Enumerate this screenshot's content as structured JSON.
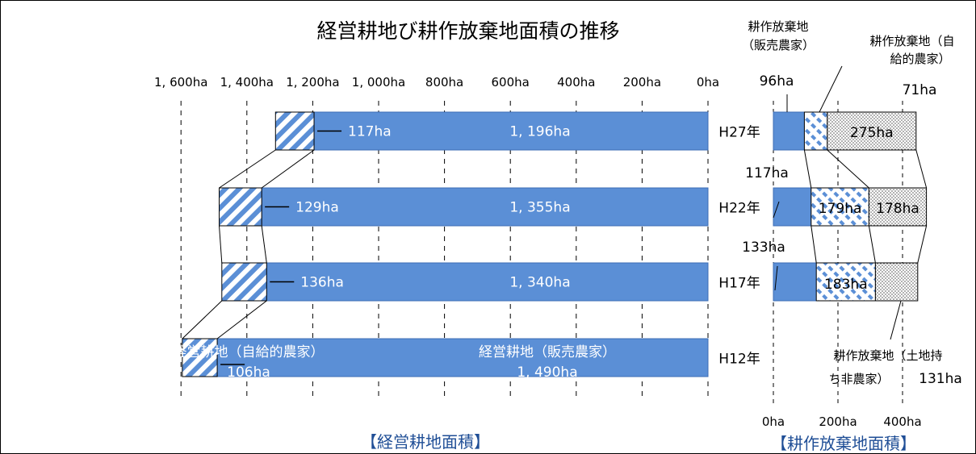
{
  "chart_data": [
    {
      "type": "bar",
      "title": "経営耕地び耕作放棄地面積の推移",
      "caption": "【経営耕地面積】",
      "x_ticks": [
        "1, 600ha",
        "1, 400ha",
        "1, 200ha",
        "1, 000ha",
        "800ha",
        "600ha",
        "400ha",
        "200ha",
        "0ha"
      ],
      "x_range": [
        0,
        1800
      ],
      "categories": [
        "H27年",
        "H22年",
        "H17年",
        "H12年"
      ],
      "series": [
        {
          "name": "経営耕地（販売農家）",
          "values": [
            1196,
            1355,
            1340,
            1490
          ],
          "labels": [
            "1, 196ha",
            "1, 355ha",
            "1, 340ha",
            "1, 490ha"
          ]
        },
        {
          "name": "経営耕地（自給的農家）",
          "values": [
            117,
            129,
            136,
            106
          ],
          "labels": [
            "117ha",
            "129ha",
            "136ha",
            "106ha"
          ]
        }
      ],
      "series_labels": {
        "sales_name": "経営耕地（販売農家）",
        "self_name": "経営耕地（自給的農家）"
      },
      "colors": {
        "sales": "#5b8fd6",
        "self_pattern": "#5b8fd6"
      }
    },
    {
      "type": "bar",
      "caption": "【耕作放棄地面積】",
      "x_ticks": [
        "0ha",
        "200ha",
        "400ha"
      ],
      "x_range": [
        0,
        450
      ],
      "categories": [
        "H27年",
        "H22年",
        "H17年",
        "H12年"
      ],
      "series": [
        {
          "name": "耕作放棄地（販売農家）",
          "values": [
            96,
            117,
            133,
            null
          ],
          "labels": [
            "96ha",
            "117ha",
            "133ha",
            ""
          ]
        },
        {
          "name": "耕作放棄地（自給的農家）",
          "values": [
            71,
            179,
            183,
            null
          ],
          "labels": [
            "71ha",
            "179ha",
            "183ha",
            ""
          ]
        },
        {
          "name": "耕作放棄地（土地持ち非農家）",
          "values": [
            275,
            178,
            131,
            null
          ],
          "labels": [
            "275ha",
            "178ha",
            "131ha",
            ""
          ]
        }
      ],
      "callouts": {
        "sales_line1": "耕作放棄地",
        "sales_line2": "（販売農家）",
        "self_line1": "耕作放棄地（自",
        "self_line2": "給的農家）",
        "nonfarm_line1": "耕作放棄地（土地持",
        "nonfarm_line2": "ち非農家）"
      },
      "colors": {
        "sales": "#5b8fd6",
        "self_pattern": "#5b8fd6",
        "nonfarm_dots": "#555555"
      }
    }
  ]
}
